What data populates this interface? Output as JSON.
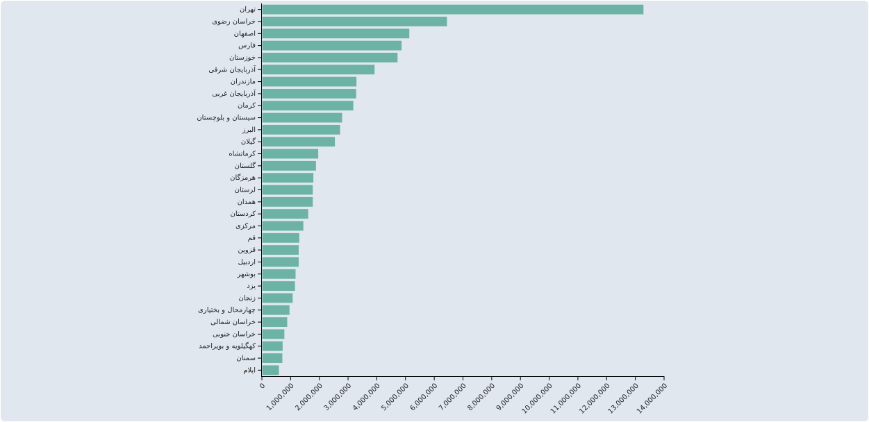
{
  "chart_data": {
    "type": "bar",
    "orientation": "horizontal",
    "categories": [
      "تهران",
      "خراسان رضوی",
      "اصفهان",
      "فارس",
      "خوزستان",
      "آذربایجان شرقی",
      "مازندران",
      "آذربایجان غربی",
      "کرمان",
      "سیستان و بلوچستان",
      "البرز",
      "گیلان",
      "کرمانشاه",
      "گلستان",
      "هرمزگان",
      "لرستان",
      "همدان",
      "کردستان",
      "مرکزی",
      "قم",
      "قزوین",
      "اردبیل",
      "بوشهر",
      "یزد",
      "زنجان",
      "چهارمحال و بختیاری",
      "خراسان شمالی",
      "خراسان جنوبی",
      "کهگیلویه و بویراحمد",
      "سمنان",
      "ایلام"
    ],
    "values": [
      13270000,
      6430000,
      5120000,
      4850000,
      4710000,
      3910000,
      3280000,
      3270000,
      3170000,
      2780000,
      2710000,
      2530000,
      1950000,
      1870000,
      1780000,
      1760000,
      1760000,
      1600000,
      1430000,
      1290000,
      1270000,
      1270000,
      1160000,
      1140000,
      1060000,
      950000,
      870000,
      770000,
      710000,
      700000,
      580000
    ],
    "xlim": [
      0,
      14000000
    ],
    "xticks": [
      0,
      1000000,
      2000000,
      3000000,
      4000000,
      5000000,
      6000000,
      7000000,
      8000000,
      9000000,
      10000000,
      11000000,
      12000000,
      13000000,
      14000000
    ],
    "xtick_labels": [
      "0",
      "1,000,000",
      "2,000,000",
      "3,000,000",
      "4,000,000",
      "5,000,000",
      "6,000,000",
      "7,000,000",
      "8,000,000",
      "9,000,000",
      "10,000,000",
      "11,000,000",
      "12,000,000",
      "13,000,000",
      "14,000,000"
    ],
    "bar_color": "#6bb3a4",
    "axis_color": "#000000",
    "background_color": "#e1e7ef",
    "grid": false,
    "legend": "none",
    "title": "",
    "xlabel": "",
    "ylabel": ""
  }
}
